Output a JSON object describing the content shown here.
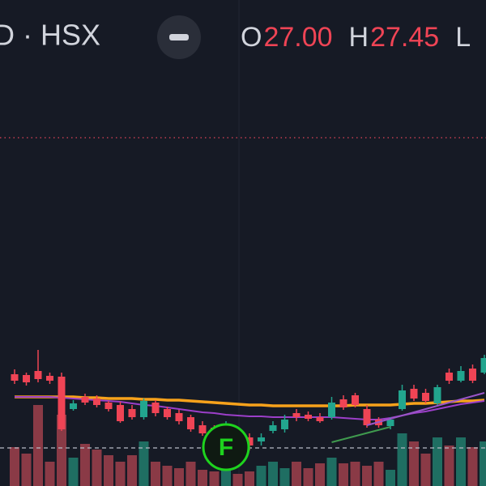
{
  "header": {
    "symbol": "D · HSX",
    "ohlc": [
      {
        "label": "O",
        "value": "27.00"
      },
      {
        "label": "H",
        "value": "27.45"
      },
      {
        "label": "L"
      }
    ]
  },
  "chart_data": {
    "type": "candlestick",
    "ylim": [
      22,
      28
    ],
    "open": [
      23.38,
      23.37,
      23.42,
      23.36,
      23.35,
      22.95,
      23.1,
      23.08,
      23.03,
      23.0,
      22.95,
      22.85,
      23.03,
      22.95,
      22.9,
      22.85,
      22.75,
      22.72,
      22.6,
      22.65,
      22.6,
      22.55,
      22.68,
      22.7,
      22.9,
      22.88,
      22.85,
      22.85,
      23.07,
      23.12,
      22.95,
      22.82,
      22.74,
      22.95,
      23.2,
      23.15,
      23.02,
      23.4,
      23.3,
      23.45,
      23.4
    ],
    "high": [
      23.44,
      23.4,
      23.68,
      23.4,
      23.4,
      23.06,
      23.14,
      23.12,
      23.05,
      23.04,
      23.0,
      23.08,
      23.06,
      22.98,
      22.94,
      22.88,
      22.8,
      22.75,
      22.8,
      22.7,
      22.65,
      22.65,
      22.8,
      22.88,
      22.95,
      22.92,
      22.9,
      23.1,
      23.12,
      23.15,
      23.0,
      22.85,
      22.85,
      23.25,
      23.25,
      23.2,
      23.25,
      23.45,
      23.48,
      23.5,
      23.62
    ],
    "low": [
      23.26,
      23.24,
      23.28,
      23.26,
      22.68,
      22.93,
      23.0,
      22.97,
      22.92,
      22.78,
      22.82,
      22.82,
      22.86,
      22.82,
      22.76,
      22.67,
      22.62,
      22.57,
      22.55,
      22.5,
      22.44,
      22.5,
      22.65,
      22.66,
      22.8,
      22.8,
      22.78,
      22.82,
      22.94,
      22.97,
      22.72,
      22.72,
      22.7,
      22.93,
      23.05,
      23.02,
      23.0,
      23.26,
      23.28,
      23.27,
      23.38
    ],
    "close": [
      23.3,
      23.28,
      23.32,
      23.3,
      22.7,
      23.02,
      23.03,
      23.0,
      22.95,
      22.8,
      22.85,
      23.05,
      22.9,
      22.85,
      22.8,
      22.7,
      22.65,
      22.6,
      22.75,
      22.55,
      22.5,
      22.6,
      22.75,
      22.82,
      22.85,
      22.83,
      22.8,
      23.03,
      22.97,
      23.0,
      22.75,
      22.75,
      22.82,
      23.18,
      23.08,
      23.05,
      23.22,
      23.3,
      23.42,
      23.3,
      23.58
    ],
    "volume": [
      48,
      40,
      100,
      30,
      88,
      35,
      52,
      45,
      38,
      30,
      38,
      55,
      30,
      25,
      22,
      30,
      20,
      18,
      45,
      15,
      18,
      25,
      30,
      22,
      30,
      22,
      28,
      35,
      28,
      30,
      25,
      30,
      20,
      65,
      55,
      40,
      60,
      50,
      60,
      48,
      55
    ],
    "volume_lim": [
      0,
      200
    ],
    "up_color": "#22a58e",
    "down_color": "#ef4455",
    "up_volume_color": "#1f6e62",
    "down_volume_color": "#8a3a46",
    "ma": [
      {
        "color": "#f7a21b",
        "values": [
          23.1,
          23.1,
          23.1,
          23.1,
          23.1,
          23.1,
          23.09,
          23.09,
          23.08,
          23.08,
          23.08,
          23.07,
          23.07,
          23.06,
          23.06,
          23.05,
          23.04,
          23.03,
          23.02,
          23.01,
          23.0,
          23.0,
          22.99,
          22.99,
          22.99,
          22.99,
          22.99,
          22.99,
          22.99,
          23.0,
          23.0,
          23.0,
          23.0,
          23.01,
          23.02,
          23.02,
          23.03,
          23.04,
          23.05,
          23.05,
          23.06
        ]
      },
      {
        "color": "#9c3fc9",
        "values": [
          23.1,
          23.1,
          23.1,
          23.1,
          23.09,
          23.08,
          23.07,
          23.06,
          23.05,
          23.04,
          23.02,
          23.0,
          22.99,
          22.97,
          22.95,
          22.93,
          22.91,
          22.9,
          22.88,
          22.87,
          22.86,
          22.86,
          22.85,
          22.85,
          22.85,
          22.85,
          22.85,
          22.85,
          22.84,
          22.83,
          22.82,
          22.82,
          22.84,
          22.87,
          22.9,
          22.92,
          22.95,
          22.98,
          23.01,
          23.03,
          23.05
        ]
      }
    ],
    "price_line": {
      "value": 26.3,
      "color": "#e0455a"
    },
    "base_line": {
      "value": 22.47,
      "color": "#b8bcc6"
    },
    "trendlines": [
      {
        "color": "#3f9a4e",
        "x": [
          27,
          32
        ],
        "values": [
          22.54,
          22.73
        ]
      },
      {
        "color": "#9a55c8",
        "x": [
          30,
          40
        ],
        "values": [
          22.75,
          23.15
        ]
      }
    ],
    "badge": {
      "text": "F",
      "index": 18,
      "color": "#1ed31e"
    }
  }
}
